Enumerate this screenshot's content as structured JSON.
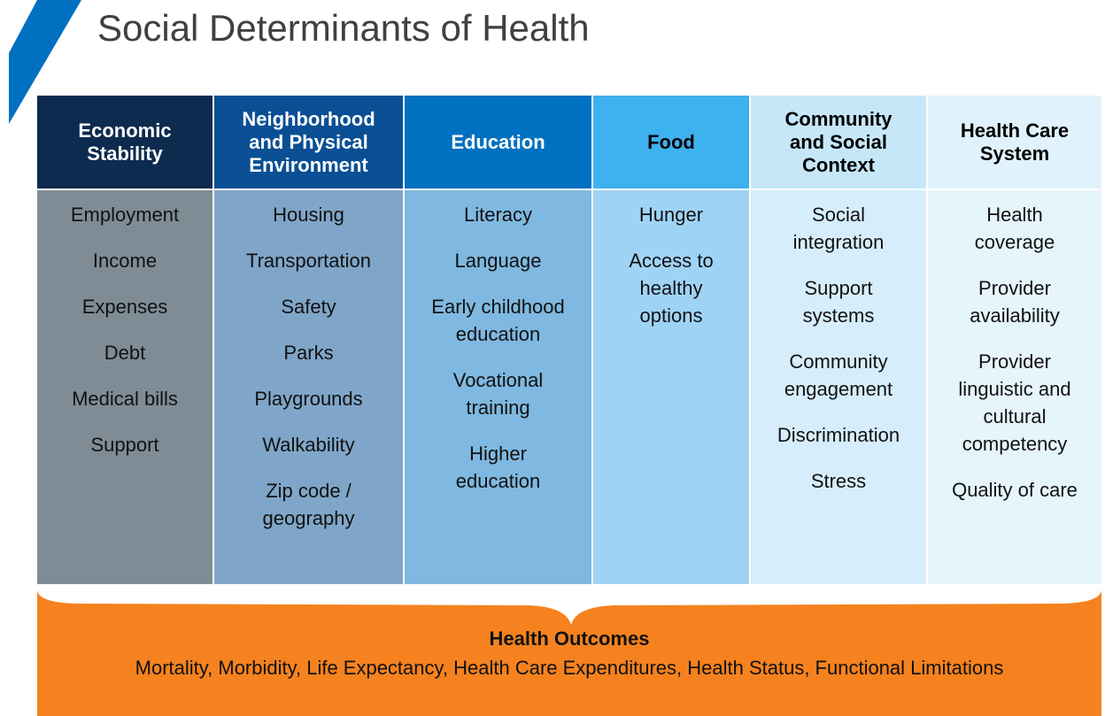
{
  "title": "Social Determinants of Health",
  "columns": [
    {
      "header": "Economic\nStability",
      "items": [
        "Employment",
        "Income",
        "Expenses",
        "Debt",
        "Medical bills",
        "Support"
      ]
    },
    {
      "header": "Neighborhood\nand Physical\nEnvironment",
      "items": [
        "Housing",
        "Transportation",
        "Safety",
        "Parks",
        "Playgrounds",
        "Walkability",
        "Zip code /\ngeography"
      ]
    },
    {
      "header": "Education",
      "items": [
        "Literacy",
        "Language",
        "Early childhood\neducation",
        "Vocational\ntraining",
        "Higher\neducation"
      ]
    },
    {
      "header": "Food",
      "items": [
        "Hunger",
        "Access to\nhealthy\noptions"
      ]
    },
    {
      "header": "Community\nand Social\nContext",
      "items": [
        "Social\nintegration",
        "Support\nsystems",
        "Community\nengagement",
        "Discrimination",
        "Stress"
      ]
    },
    {
      "header": "Health Care\nSystem",
      "items": [
        "Health\ncoverage",
        "Provider\navailability",
        "Provider\nlinguistic and\ncultural\ncompetency",
        "Quality of care"
      ]
    }
  ],
  "outcomes": {
    "title": "Health Outcomes",
    "text": "Mortality, Morbidity, Life Expectancy, Health Care Expenditures, Health Status, Functional Limitations"
  }
}
